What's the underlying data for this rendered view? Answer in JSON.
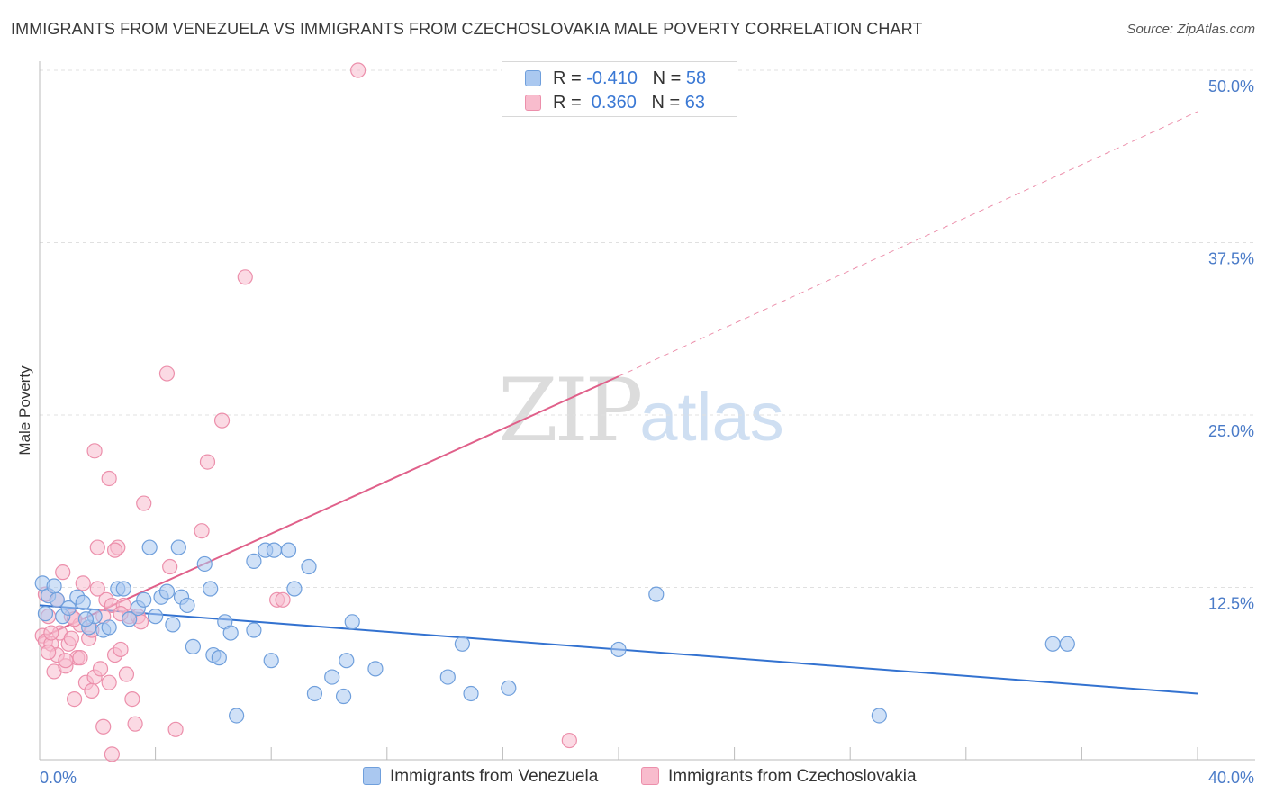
{
  "title": "IMMIGRANTS FROM VENEZUELA VS IMMIGRANTS FROM CZECHOSLOVAKIA MALE POVERTY CORRELATION CHART",
  "source": "Source: ZipAtlas.com",
  "watermark": {
    "zip": "ZIP",
    "atlas": "atlas"
  },
  "legend": {
    "rows": [
      {
        "r_label": "R = ",
        "r_value": "-0.410",
        "n_label": "N = ",
        "n_value": "58"
      },
      {
        "r_label": "R = ",
        "r_value": " 0.360",
        "n_label": "N = ",
        "n_value": "63"
      }
    ]
  },
  "colors": {
    "venezuela_fill": "#aac8f0",
    "venezuela_stroke": "#6f9fdc",
    "venezuela_line": "#3372d0",
    "czech_fill": "#f8bccd",
    "czech_stroke": "#ec8fab",
    "czech_line": "#e0608a",
    "tick": "#4a7bc8",
    "grid": "#e0e0e0"
  },
  "chart_data": {
    "type": "scatter",
    "title": "IMMIGRANTS FROM VENEZUELA VS IMMIGRANTS FROM CZECHOSLOVAKIA MALE POVERTY CORRELATION CHART",
    "xlabel": "",
    "ylabel": "Male Poverty",
    "xlim": [
      0,
      40
    ],
    "ylim": [
      0,
      50
    ],
    "x_tick_labels": [
      "0.0%",
      "40.0%"
    ],
    "y_ticks": [
      12.5,
      25.0,
      37.5,
      50.0
    ],
    "y_tick_labels": [
      "12.5%",
      "25.0%",
      "37.5%",
      "50.0%"
    ],
    "grid": true,
    "legend_position": "top-center",
    "series": [
      {
        "name": "Immigrants from Venezuela",
        "r": -0.41,
        "n": 58,
        "trend": {
          "x": [
            0,
            40
          ],
          "y": [
            11.2,
            4.8
          ]
        },
        "points": [
          [
            0.1,
            12.8
          ],
          [
            0.3,
            11.9
          ],
          [
            0.5,
            12.6
          ],
          [
            0.6,
            11.6
          ],
          [
            0.8,
            10.4
          ],
          [
            1.0,
            11.0
          ],
          [
            1.3,
            11.8
          ],
          [
            1.5,
            11.4
          ],
          [
            1.7,
            9.6
          ],
          [
            1.9,
            10.4
          ],
          [
            2.2,
            9.4
          ],
          [
            2.4,
            9.6
          ],
          [
            2.7,
            12.4
          ],
          [
            2.9,
            12.4
          ],
          [
            3.1,
            10.2
          ],
          [
            3.4,
            11.0
          ],
          [
            3.6,
            11.6
          ],
          [
            3.8,
            15.4
          ],
          [
            4.0,
            10.4
          ],
          [
            4.2,
            11.8
          ],
          [
            4.4,
            12.2
          ],
          [
            4.6,
            9.8
          ],
          [
            4.8,
            15.4
          ],
          [
            4.9,
            11.8
          ],
          [
            5.1,
            11.2
          ],
          [
            5.3,
            8.2
          ],
          [
            5.7,
            14.2
          ],
          [
            5.9,
            12.4
          ],
          [
            6.0,
            7.6
          ],
          [
            6.2,
            7.4
          ],
          [
            6.4,
            10.0
          ],
          [
            6.6,
            9.2
          ],
          [
            6.8,
            3.2
          ],
          [
            7.4,
            9.4
          ],
          [
            7.4,
            14.4
          ],
          [
            7.8,
            15.2
          ],
          [
            8.0,
            7.2
          ],
          [
            8.1,
            15.2
          ],
          [
            8.6,
            15.2
          ],
          [
            8.8,
            12.4
          ],
          [
            9.3,
            14.0
          ],
          [
            9.5,
            4.8
          ],
          [
            10.1,
            6.0
          ],
          [
            10.5,
            4.6
          ],
          [
            10.6,
            7.2
          ],
          [
            10.8,
            10.0
          ],
          [
            11.6,
            6.6
          ],
          [
            14.1,
            6.0
          ],
          [
            14.6,
            8.4
          ],
          [
            14.9,
            4.8
          ],
          [
            16.2,
            5.2
          ],
          [
            20.0,
            8.0
          ],
          [
            21.3,
            12.0
          ],
          [
            29.0,
            3.2
          ],
          [
            35.0,
            8.4
          ],
          [
            35.5,
            8.4
          ],
          [
            0.2,
            10.6
          ],
          [
            1.6,
            10.2
          ]
        ]
      },
      {
        "name": "Immigrants from Czechoslovakia",
        "r": 0.36,
        "n": 63,
        "trend": {
          "x": [
            0,
            20
          ],
          "y": [
            8.8,
            27.8
          ]
        },
        "trend_extension": {
          "x": [
            20,
            40
          ],
          "y": [
            27.8,
            47.0
          ]
        },
        "points": [
          [
            0.1,
            9.0
          ],
          [
            0.2,
            8.6
          ],
          [
            0.3,
            10.4
          ],
          [
            0.4,
            8.4
          ],
          [
            0.5,
            6.4
          ],
          [
            0.6,
            7.6
          ],
          [
            0.7,
            9.2
          ],
          [
            0.8,
            13.6
          ],
          [
            0.9,
            6.8
          ],
          [
            1.0,
            8.4
          ],
          [
            1.1,
            10.4
          ],
          [
            1.2,
            4.4
          ],
          [
            1.3,
            7.4
          ],
          [
            1.4,
            9.8
          ],
          [
            1.5,
            12.8
          ],
          [
            1.6,
            5.6
          ],
          [
            1.7,
            8.8
          ],
          [
            1.8,
            9.4
          ],
          [
            1.9,
            6.0
          ],
          [
            2.0,
            15.4
          ],
          [
            2.1,
            6.6
          ],
          [
            2.2,
            2.4
          ],
          [
            2.3,
            11.6
          ],
          [
            2.4,
            5.6
          ],
          [
            2.5,
            11.2
          ],
          [
            2.6,
            7.6
          ],
          [
            2.7,
            15.4
          ],
          [
            2.8,
            8.0
          ],
          [
            2.9,
            11.2
          ],
          [
            3.0,
            6.2
          ],
          [
            3.1,
            10.4
          ],
          [
            3.2,
            4.4
          ],
          [
            3.3,
            2.6
          ],
          [
            3.4,
            10.4
          ],
          [
            3.6,
            18.6
          ],
          [
            4.4,
            28.0
          ],
          [
            4.5,
            14.0
          ],
          [
            4.7,
            2.2
          ],
          [
            5.6,
            16.6
          ],
          [
            5.8,
            21.6
          ],
          [
            6.3,
            24.6
          ],
          [
            7.1,
            35.0
          ],
          [
            8.2,
            11.6
          ],
          [
            8.4,
            11.6
          ],
          [
            11.0,
            50.0
          ],
          [
            18.3,
            1.4
          ],
          [
            1.1,
            8.8
          ],
          [
            1.9,
            22.4
          ],
          [
            2.4,
            20.4
          ],
          [
            2.6,
            15.2
          ],
          [
            0.4,
            9.2
          ],
          [
            0.6,
            11.6
          ],
          [
            2.2,
            10.4
          ],
          [
            0.9,
            7.2
          ],
          [
            1.4,
            7.4
          ],
          [
            2.5,
            0.4
          ],
          [
            3.5,
            10.0
          ],
          [
            1.2,
            10.2
          ],
          [
            2.0,
            12.4
          ],
          [
            0.3,
            7.8
          ],
          [
            1.8,
            5.0
          ],
          [
            2.8,
            10.6
          ],
          [
            0.2,
            12.0
          ]
        ]
      }
    ]
  }
}
